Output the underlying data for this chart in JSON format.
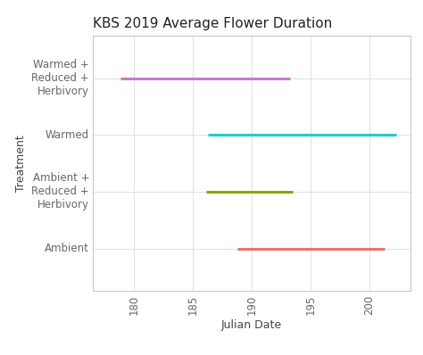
{
  "title": "KBS 2019 Average Flower Duration",
  "xlabel": "Julian Date",
  "ylabel": "Treatment",
  "lines": [
    {
      "label": "Warmed +\nReduced +\nHerbivory",
      "y": 3,
      "x_start": 178.8,
      "x_end": 193.3,
      "color": "#CC77CC"
    },
    {
      "label": "Warmed",
      "y": 2,
      "x_start": 186.3,
      "x_end": 202.3,
      "color": "#22CCCC"
    },
    {
      "label": "Ambient +\nReduced +\nHerbivory",
      "y": 1,
      "x_start": 186.1,
      "x_end": 193.5,
      "color": "#88AA00"
    },
    {
      "label": "Ambient",
      "y": 0,
      "x_start": 188.8,
      "x_end": 201.3,
      "color": "#E07868"
    }
  ],
  "xlim": [
    176.5,
    203.5
  ],
  "xticks": [
    180,
    185,
    190,
    195,
    200
  ],
  "ylim": [
    -0.75,
    3.75
  ],
  "ytick_positions": [
    0,
    1,
    2,
    3
  ],
  "ytick_labels": [
    "Ambient",
    "Ambient +\nReduced +\nHerbivory",
    "Warmed",
    "Warmed +\nReduced +\nHerbivory"
  ],
  "line_width": 2.2,
  "bg_color": "#FFFFFF",
  "panel_bg": "#FFFFFF",
  "grid_color": "#E0E0E0",
  "title_fontsize": 11,
  "axis_label_fontsize": 9,
  "tick_label_fontsize": 8.5
}
